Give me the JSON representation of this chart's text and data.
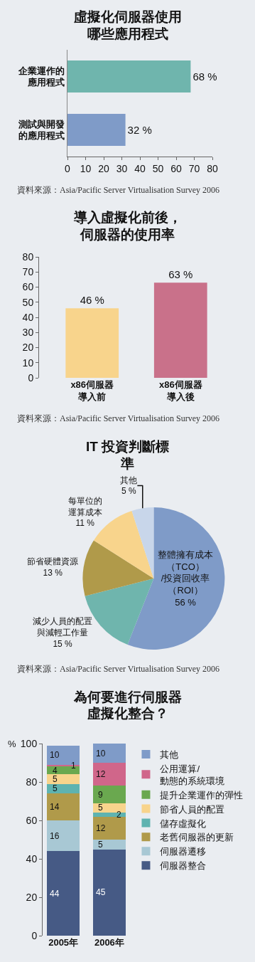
{
  "chart_data": [
    {
      "type": "bar",
      "orientation": "horizontal",
      "title": "虛擬化伺服器使用哪些應用程式",
      "categories": [
        "企業運作的應用程式",
        "測試與開發的應用程式"
      ],
      "values": [
        68,
        32
      ],
      "colors": [
        "#6fb5ad",
        "#7f9bc8"
      ],
      "value_labels": [
        "68 %",
        "32 %"
      ],
      "xlim": [
        0,
        80
      ],
      "xticks": [
        0,
        10,
        20,
        30,
        40,
        50,
        60,
        70,
        80
      ],
      "grid": false,
      "legend": false,
      "annotations": [
        "資料來源：Asia/Pacific Server Virtualisation Survey 2006"
      ]
    },
    {
      "type": "bar",
      "title": "導入虛擬化前後，伺服器的使用率",
      "categories": [
        "x86伺服器導入前",
        "x86伺服器導入後"
      ],
      "values": [
        46,
        63
      ],
      "colors": [
        "#f8d48c",
        "#c9718a"
      ],
      "value_labels": [
        "46 %",
        "63 %"
      ],
      "ylim": [
        0,
        80
      ],
      "yticks": [
        0,
        10,
        20,
        30,
        40,
        50,
        60,
        70,
        80
      ],
      "grid": false,
      "legend": false,
      "annotations": [
        "資料來源：Asia/Pacific Server Virtualisation Survey 2006"
      ]
    },
    {
      "type": "pie",
      "title": "IT 投資判斷標準",
      "categories": [
        "整體擁有成本（TCO）\n/投資回收率（ROI）",
        "減少人員的配置與減輕工作量",
        "節省硬體資源",
        "每單位的運算成本",
        "其他"
      ],
      "values": [
        56,
        15,
        13,
        11,
        5
      ],
      "colors": [
        "#7f9bc8",
        "#6fb5ad",
        "#b09a4a",
        "#f8d48c",
        "#c8d6ea"
      ],
      "value_labels": [
        "56 %",
        "15 %",
        "13 %",
        "11 %",
        "5 %"
      ],
      "legend": false,
      "annotations": [
        "資料來源：Asia/Pacific Server Virtualisation Survey 2006"
      ]
    },
    {
      "type": "bar",
      "stacked": true,
      "title": "為何要進行伺服器虛擬化整合？",
      "ylabel": "%",
      "categories": [
        "2005年",
        "2006年"
      ],
      "ylim": [
        0,
        100
      ],
      "yticks": [
        0,
        20,
        40,
        60,
        80,
        100
      ],
      "grid": false,
      "legend": "right",
      "data_labels": true,
      "series": [
        {
          "name": "伺服器整合",
          "color": "#465a85",
          "values": [
            44,
            45
          ]
        },
        {
          "name": "伺服器遷移",
          "color": "#a8c8d4",
          "values": [
            16,
            5
          ]
        },
        {
          "name": "老舊伺服器的更新",
          "color": "#b09a4a",
          "values": [
            14,
            12
          ]
        },
        {
          "name": "儲存虛擬化",
          "color": "#5fb3b0",
          "values": [
            5,
            2
          ]
        },
        {
          "name": "節省人員的配置",
          "color": "#f8d48c",
          "values": [
            5,
            5
          ]
        },
        {
          "name": "提升企業運作的彈性",
          "color": "#6aa84f",
          "values": [
            4,
            9
          ]
        },
        {
          "name": "公用運算/\n動態的系統環境",
          "color": "#d0668a",
          "values": [
            1,
            12
          ]
        },
        {
          "name": "其他",
          "color": "#7f9bc8",
          "values": [
            10,
            10
          ]
        }
      ]
    }
  ]
}
